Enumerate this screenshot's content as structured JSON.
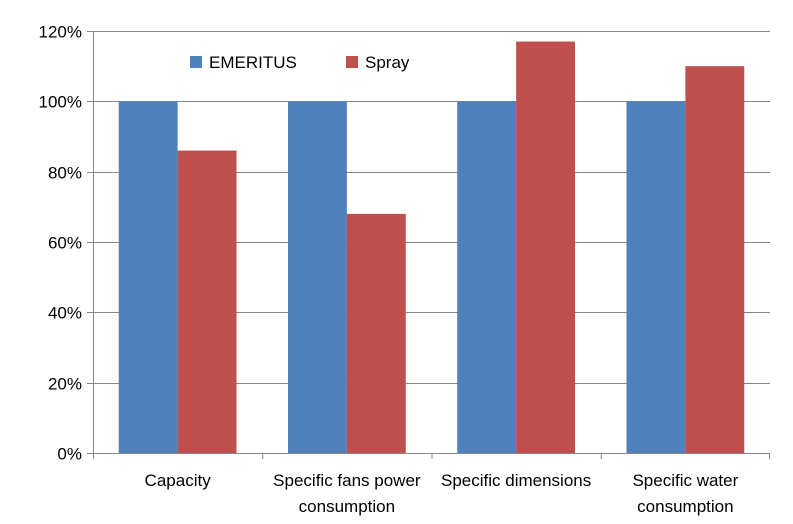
{
  "chart_data": {
    "type": "bar",
    "categories": [
      [
        "Capacity"
      ],
      [
        "Specific fans power",
        "consumption"
      ],
      [
        "Specific dimensions"
      ],
      [
        "Specific water",
        "consumption"
      ]
    ],
    "series": [
      {
        "name": "EMERITUS",
        "color": "#4F81BD",
        "values": [
          100,
          100,
          100,
          100
        ]
      },
      {
        "name": "Spray",
        "color": "#C0504D",
        "values": [
          86,
          68,
          117,
          110
        ]
      }
    ],
    "ylim": [
      0,
      120
    ],
    "yticks": [
      0,
      20,
      40,
      60,
      80,
      100,
      120
    ],
    "ytick_labels": [
      "0%",
      "20%",
      "40%",
      "60%",
      "80%",
      "100%",
      "120%"
    ],
    "grid": true,
    "legend_position": "top-left"
  }
}
